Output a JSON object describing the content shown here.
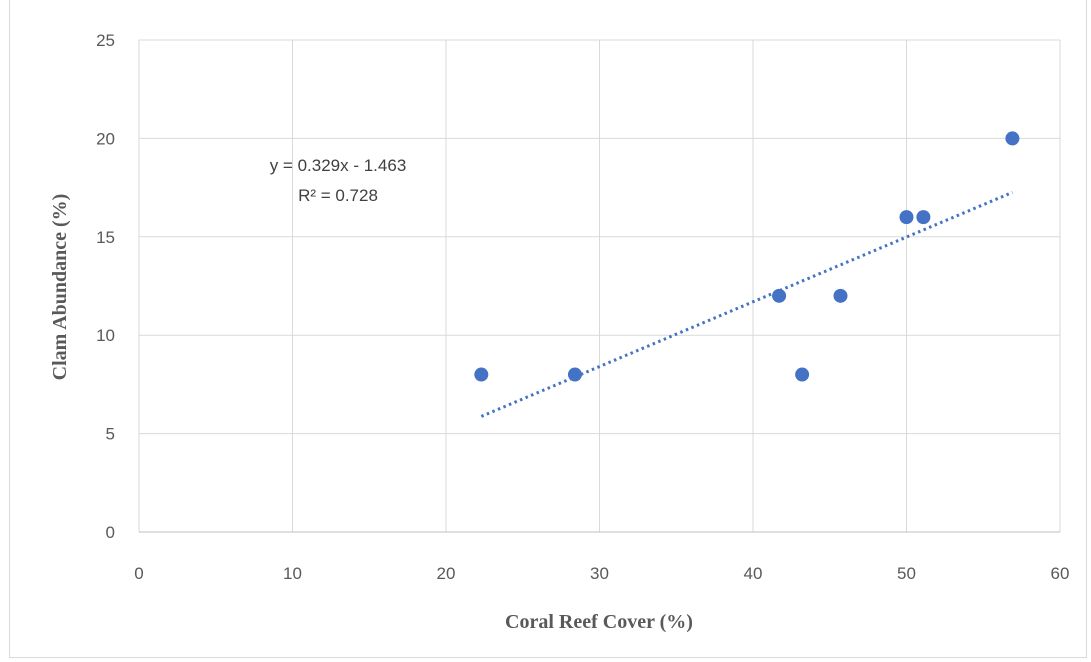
{
  "chart_data": {
    "type": "scatter",
    "title": "",
    "xlabel": "Coral Reef Cover (%)",
    "ylabel": "Clam Abundance (%)",
    "xlim": [
      0,
      60
    ],
    "ylim": [
      0,
      25
    ],
    "xticks": [
      0,
      10,
      20,
      30,
      40,
      50,
      60
    ],
    "yticks": [
      0,
      5,
      10,
      15,
      20,
      25
    ],
    "grid": true,
    "legend": "none",
    "marker_color": "#4472c4",
    "points": [
      {
        "x": 22.3,
        "y": 8
      },
      {
        "x": 28.4,
        "y": 8
      },
      {
        "x": 41.7,
        "y": 12
      },
      {
        "x": 43.2,
        "y": 8
      },
      {
        "x": 45.7,
        "y": 12
      },
      {
        "x": 50.0,
        "y": 16
      },
      {
        "x": 51.1,
        "y": 16
      },
      {
        "x": 56.9,
        "y": 20
      }
    ],
    "trendline": {
      "type": "linear",
      "slope": 0.329,
      "intercept": -1.463,
      "x_range": [
        22.3,
        56.9
      ],
      "style": "dotted",
      "color": "#4472c4",
      "equation_label": "y = 0.329x - 1.463",
      "r2_label": "R² = 0.728"
    }
  }
}
